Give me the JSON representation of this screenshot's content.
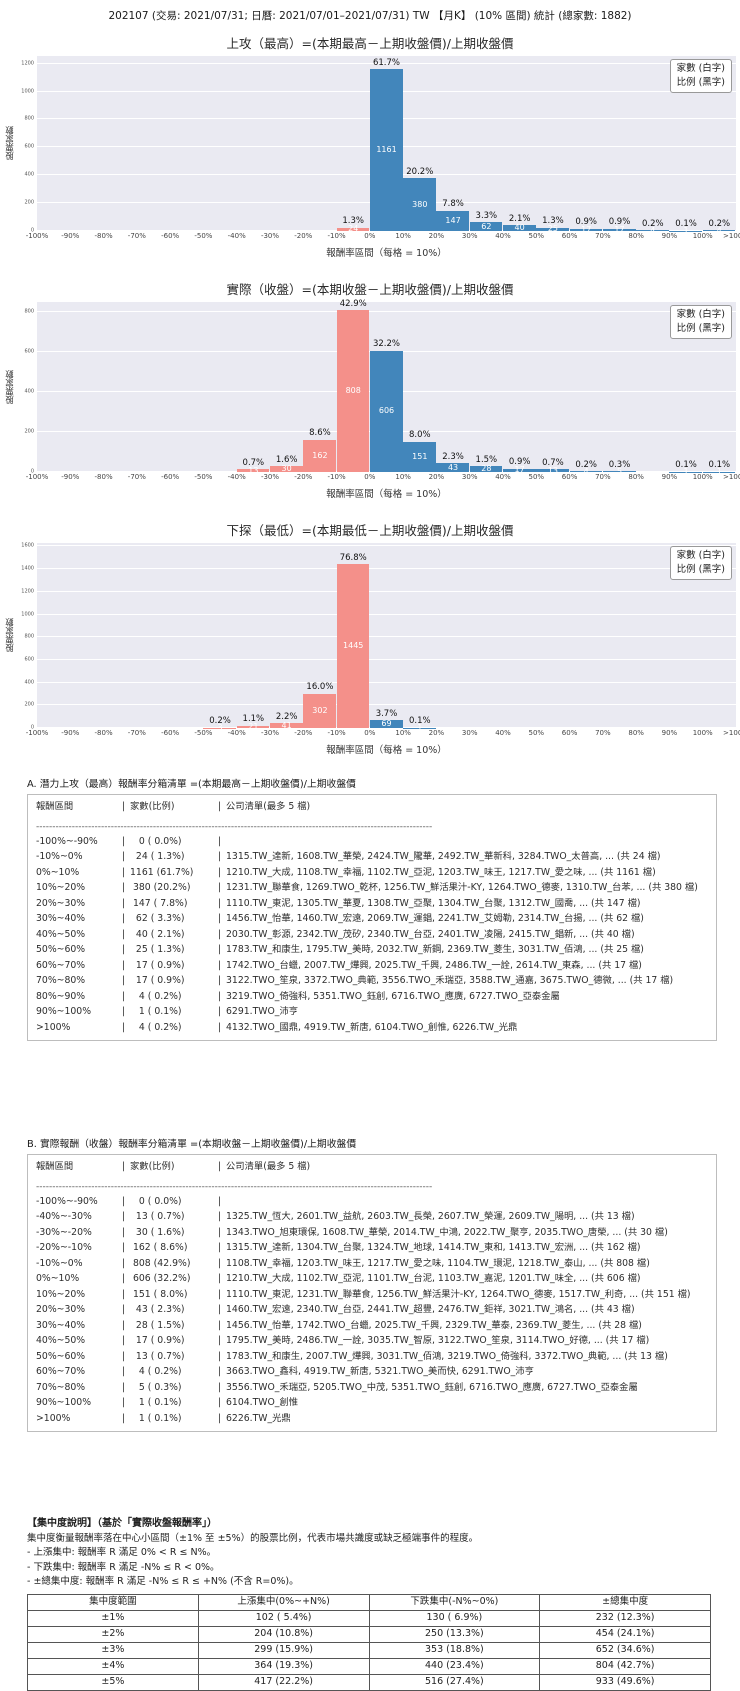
{
  "page_title": "202107 (交易: 2021/07/31; 日曆: 2021/07/01–2021/07/31) TW 【月K】 (10% 區間) 統計 (總家數: 1882)",
  "colors": {
    "up_bar": "#4286bb",
    "down_bar": "#f4908a",
    "plot_bg": "#eaeaf2",
    "grid": "#ffffff"
  },
  "legend": {
    "line1": "家數 (白字)",
    "line2": "比例 (黑字)"
  },
  "chart_data": [
    {
      "type": "bar",
      "title": "上攻（最高）=(本期最高－上期收盤價)/上期收盤價",
      "xlabel": "報酬率區間（每格 = 10%）",
      "ylabel": "股票家數",
      "xticks": [
        "-100%",
        "-90%",
        "-80%",
        "-70%",
        "-60%",
        "-50%",
        "-40%",
        "-30%",
        "-20%",
        "-10%",
        "0%",
        "10%",
        "20%",
        "30%",
        "40%",
        "50%",
        "60%",
        "70%",
        "80%",
        "90%",
        "100%",
        ">100%"
      ],
      "yticks": [
        0,
        200,
        400,
        600,
        800,
        1000,
        1200
      ],
      "ymax": 1255,
      "counts": [
        0,
        0,
        0,
        0,
        0,
        0,
        0,
        0,
        0,
        24,
        1161,
        380,
        147,
        62,
        40,
        25,
        17,
        17,
        4,
        1,
        4
      ],
      "percents": [
        "",
        "",
        "",
        "",
        "",
        "",
        "",
        "",
        "",
        "1.3%",
        "61.7%",
        "20.2%",
        "7.8%",
        "3.3%",
        "2.1%",
        "1.3%",
        "0.9%",
        "0.9%",
        "0.2%",
        "0.1%",
        "0.2%"
      ]
    },
    {
      "type": "bar",
      "title": "實際（收盤）=(本期收盤－上期收盤價)/上期收盤價",
      "xlabel": "報酬率區間（每格 = 10%）",
      "ylabel": "股票家數",
      "xticks": [
        "-100%",
        "-90%",
        "-80%",
        "-70%",
        "-60%",
        "-50%",
        "-40%",
        "-30%",
        "-20%",
        "-10%",
        "0%",
        "10%",
        "20%",
        "30%",
        "40%",
        "50%",
        "60%",
        "70%",
        "80%",
        "90%",
        "100%",
        ">100%"
      ],
      "yticks": [
        0,
        200,
        400,
        600,
        800
      ],
      "ymax": 850,
      "counts": [
        0,
        0,
        0,
        0,
        0,
        0,
        13,
        30,
        162,
        808,
        606,
        151,
        43,
        28,
        17,
        13,
        4,
        5,
        0,
        1,
        1
      ],
      "percents": [
        "",
        "",
        "",
        "",
        "",
        "",
        "0.7%",
        "1.6%",
        "8.6%",
        "42.9%",
        "32.2%",
        "8.0%",
        "2.3%",
        "1.5%",
        "0.9%",
        "0.7%",
        "0.2%",
        "0.3%",
        "",
        "0.1%",
        "0.1%"
      ]
    },
    {
      "type": "bar",
      "title": "下探（最低）=(本期最低－上期收盤價)/上期收盤價",
      "xlabel": "報酬率區間（每格 = 10%）",
      "ylabel": "股票家數",
      "xticks": [
        "-100%",
        "-90%",
        "-80%",
        "-70%",
        "-60%",
        "-50%",
        "-40%",
        "-30%",
        "-20%",
        "-10%",
        "0%",
        "10%",
        "20%",
        "30%",
        "40%",
        "50%",
        "60%",
        "70%",
        "80%",
        "90%",
        "100%",
        ">100%"
      ],
      "yticks": [
        0,
        200,
        400,
        600,
        800,
        1000,
        1200,
        1400,
        1600
      ],
      "ymax": 1630,
      "counts": [
        0,
        0,
        0,
        0,
        0,
        3,
        21,
        41,
        302,
        1445,
        69,
        1,
        0,
        0,
        0,
        0,
        0,
        0,
        0,
        0,
        0
      ],
      "percents": [
        "",
        "",
        "",
        "",
        "",
        "0.2%",
        "1.1%",
        "2.2%",
        "16.0%",
        "76.8%",
        "3.7%",
        "0.1%",
        "",
        "",
        "",
        "",
        "",
        "",
        "",
        "",
        ""
      ]
    }
  ],
  "lists": {
    "header": {
      "range": "報酬區間",
      "count": "家數(比例)",
      "companies": "公司清單(最多 5 檔)"
    },
    "separator": "--------------------------------------------------------------------------------------------------------------------------",
    "a": {
      "title": "A. 潛力上攻（最高）報酬率分箱清單 =(本期最高－上期收盤價)/上期收盤價",
      "rows": [
        {
          "range": "-100%~-90%",
          "count": "   0 ( 0.0%)",
          "companies": ""
        },
        {
          "range": "-10%~0%",
          "count": "  24 ( 1.3%)",
          "companies": "1315.TW_達新, 1608.TW_華榮, 2424.TW_隴華, 2492.TW_華新科, 3284.TWO_太普高, ... (共 24 檔)"
        },
        {
          "range": "0%~10%",
          "count": "1161 (61.7%)",
          "companies": "1210.TW_大成, 1108.TW_幸福, 1102.TW_亞泥, 1203.TW_味王, 1217.TW_愛之味, ... (共 1161 檔)"
        },
        {
          "range": "10%~20%",
          "count": " 380 (20.2%)",
          "companies": "1231.TW_聯華食, 1269.TWO_乾杯, 1256.TW_鮮活果汁-KY, 1264.TWO_德麥, 1310.TW_台苯, ... (共 380 檔)"
        },
        {
          "range": "20%~30%",
          "count": " 147 ( 7.8%)",
          "companies": "1110.TW_東泥, 1305.TW_華夏, 1308.TW_亞聚, 1304.TW_台聚, 1312.TW_國喬, ... (共 147 檔)"
        },
        {
          "range": "30%~40%",
          "count": "  62 ( 3.3%)",
          "companies": "1456.TW_怡華, 1460.TW_宏遠, 2069.TW_運錩, 2241.TW_艾姆勒, 2314.TW_台揚, ... (共 62 檔)"
        },
        {
          "range": "40%~50%",
          "count": "  40 ( 2.1%)",
          "companies": "2030.TW_彰源, 2342.TW_茂矽, 2340.TW_台亞, 2401.TW_凌陽, 2415.TW_錩新, ... (共 40 檔)"
        },
        {
          "range": "50%~60%",
          "count": "  25 ( 1.3%)",
          "companies": "1783.TW_和康生, 1795.TW_美時, 2032.TW_新鋼, 2369.TW_菱生, 3031.TW_佰鴻, ... (共 25 檔)"
        },
        {
          "range": "60%~70%",
          "count": "  17 ( 0.9%)",
          "companies": "1742.TWO_台蠟, 2007.TW_燁興, 2025.TW_千興, 2486.TW_一詮, 2614.TW_東森, ... (共 17 檔)"
        },
        {
          "range": "70%~80%",
          "count": "  17 ( 0.9%)",
          "companies": "3122.TWO_笙泉, 3372.TWO_典範, 3556.TWO_禾瑞亞, 3588.TW_通嘉, 3675.TWO_德微, ... (共 17 檔)"
        },
        {
          "range": "80%~90%",
          "count": "   4 ( 0.2%)",
          "companies": "3219.TWO_倚強科, 5351.TWO_鈺創, 6716.TWO_應廣, 6727.TWO_亞泰金屬"
        },
        {
          "range": "90%~100%",
          "count": "   1 ( 0.1%)",
          "companies": "6291.TWO_沛亨"
        },
        {
          "range": ">100%",
          "count": "   4 ( 0.2%)",
          "companies": "4132.TWO_國鼎, 4919.TW_新唐, 6104.TWO_創惟, 6226.TW_光鼎"
        }
      ]
    },
    "b": {
      "title": "B. 實際報酬（收盤）報酬率分箱清單 =(本期收盤－上期收盤價)/上期收盤價",
      "rows": [
        {
          "range": "-100%~-90%",
          "count": "   0 ( 0.0%)",
          "companies": ""
        },
        {
          "range": "-40%~-30%",
          "count": "  13 ( 0.7%)",
          "companies": "1325.TW_恆大, 2601.TW_益航, 2603.TW_長榮, 2607.TW_榮運, 2609.TW_陽明, ... (共 13 檔)"
        },
        {
          "range": "-30%~-20%",
          "count": "  30 ( 1.6%)",
          "companies": "1343.TWO_旭東環保, 1608.TW_華榮, 2014.TW_中鴻, 2022.TW_聚亨, 2035.TWO_唐榮, ... (共 30 檔)"
        },
        {
          "range": "-20%~-10%",
          "count": " 162 ( 8.6%)",
          "companies": "1315.TW_達新, 1304.TW_台聚, 1324.TW_地球, 1414.TW_東和, 1413.TW_宏洲, ... (共 162 檔)"
        },
        {
          "range": "-10%~0%",
          "count": " 808 (42.9%)",
          "companies": "1108.TW_幸福, 1203.TW_味王, 1217.TW_愛之味, 1104.TW_環泥, 1218.TW_泰山, ... (共 808 檔)"
        },
        {
          "range": "0%~10%",
          "count": " 606 (32.2%)",
          "companies": "1210.TW_大成, 1102.TW_亞泥, 1101.TW_台泥, 1103.TW_嘉泥, 1201.TW_味全, ... (共 606 檔)"
        },
        {
          "range": "10%~20%",
          "count": " 151 ( 8.0%)",
          "companies": "1110.TW_東泥, 1231.TW_聯華食, 1256.TW_鮮活果汁-KY, 1264.TWO_德麥, 1517.TW_利奇, ... (共 151 檔)"
        },
        {
          "range": "20%~30%",
          "count": "  43 ( 2.3%)",
          "companies": "1460.TW_宏遠, 2340.TW_台亞, 2441.TW_超豐, 2476.TW_鉅祥, 3021.TW_鴻名, ... (共 43 檔)"
        },
        {
          "range": "30%~40%",
          "count": "  28 ( 1.5%)",
          "companies": "1456.TW_怡華, 1742.TWO_台蠟, 2025.TW_千興, 2329.TW_華泰, 2369.TW_菱生, ... (共 28 檔)"
        },
        {
          "range": "40%~50%",
          "count": "  17 ( 0.9%)",
          "companies": "1795.TW_美時, 2486.TW_一詮, 3035.TW_智原, 3122.TWO_笙泉, 3114.TWO_好德, ... (共 17 檔)"
        },
        {
          "range": "50%~60%",
          "count": "  13 ( 0.7%)",
          "companies": "1783.TW_和康生, 2007.TW_燁興, 3031.TW_佰鴻, 3219.TWO_倚強科, 3372.TWO_典範, ... (共 13 檔)"
        },
        {
          "range": "60%~70%",
          "count": "   4 ( 0.2%)",
          "companies": "3663.TWO_鑫科, 4919.TW_新唐, 5321.TWO_美而快, 6291.TWO_沛亨"
        },
        {
          "range": "70%~80%",
          "count": "   5 ( 0.3%)",
          "companies": "3556.TWO_禾瑞亞, 5205.TWO_中茂, 5351.TWO_鈺創, 6716.TWO_應廣, 6727.TWO_亞泰金屬"
        },
        {
          "range": "90%~100%",
          "count": "   1 ( 0.1%)",
          "companies": "6104.TWO_創惟"
        },
        {
          "range": ">100%",
          "count": "   1 ( 0.1%)",
          "companies": "6226.TW_光鼎"
        }
      ]
    }
  },
  "concentration": {
    "heading": "【集中度說明】（基於「實際收盤報酬率」）",
    "desc": "集中度衡量報酬率落在中心小區間（±1% 至 ±5%）的股票比例，代表市場共識度或缺乏極端事件的程度。",
    "bullets": [
      "- 上漲集中: 報酬率 R 滿足 0% < R ≤ N%。",
      "- 下跌集中: 報酬率 R 滿足 -N% ≤ R < 0%。",
      "- ±總集中度: 報酬率 R 滿足 -N% ≤ R ≤ +N% (不含 R=0%)。"
    ],
    "table": {
      "headers": [
        "集中度範圍",
        "上漲集中(0%~+N%)",
        "下跌集中(-N%~0%)",
        "±總集中度"
      ],
      "rows": [
        [
          "±1%",
          "102 ( 5.4%)",
          "130 ( 6.9%)",
          "232 (12.3%)"
        ],
        [
          "±2%",
          "204 (10.8%)",
          "250 (13.3%)",
          "454 (24.1%)"
        ],
        [
          "±3%",
          "299 (15.9%)",
          "353 (18.8%)",
          "652 (34.6%)"
        ],
        [
          "±4%",
          "364 (19.3%)",
          "440 (23.4%)",
          "804 (42.7%)"
        ],
        [
          "±5%",
          "417 (22.2%)",
          "516 (27.4%)",
          "933 (49.6%)"
        ]
      ]
    }
  }
}
